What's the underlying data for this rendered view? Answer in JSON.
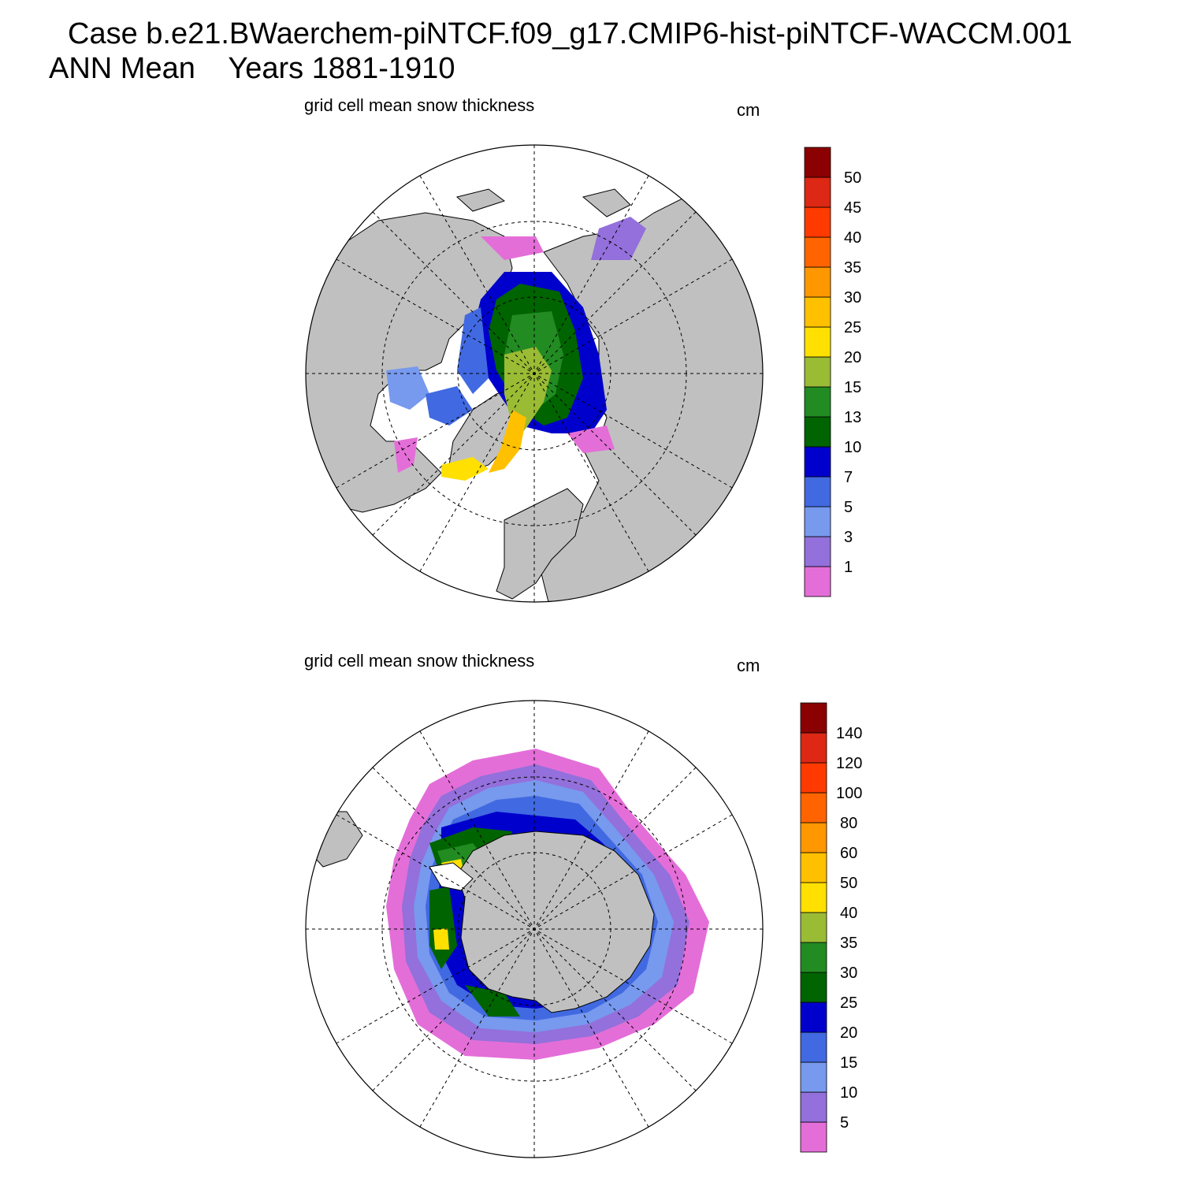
{
  "header": {
    "title_line1": "Case b.e21.BWaerchem-piNTCF.f09_g17.CMIP6-hist-piNTCF-WACCM.001",
    "title_line2": "ANN Mean    Years 1881-1910"
  },
  "panels": [
    {
      "id": "north",
      "title": "grid cell mean snow thickness",
      "units": "cm",
      "hemisphere": "Northern",
      "colorbar": {
        "labels": [
          "1",
          "3",
          "5",
          "7",
          "10",
          "13",
          "15",
          "20",
          "25",
          "30",
          "35",
          "40",
          "45",
          "50"
        ],
        "colors": [
          "#e46ed8",
          "#9370db",
          "#7799ee",
          "#4169e1",
          "#0000cd",
          "#006400",
          "#228b22",
          "#9abb34",
          "#ffe000",
          "#ffc000",
          "#ff9700",
          "#ff6400",
          "#ff3a00",
          "#dc2814",
          "#8b0000"
        ]
      }
    },
    {
      "id": "south",
      "title": "grid cell mean snow thickness",
      "units": "cm",
      "hemisphere": "Southern",
      "colorbar": {
        "labels": [
          "5",
          "10",
          "15",
          "20",
          "25",
          "30",
          "35",
          "40",
          "50",
          "60",
          "80",
          "100",
          "120",
          "140"
        ],
        "colors": [
          "#e46ed8",
          "#9370db",
          "#7799ee",
          "#4169e1",
          "#0000cd",
          "#006400",
          "#228b22",
          "#9abb34",
          "#ffe000",
          "#ffc000",
          "#ff9700",
          "#ff6400",
          "#ff3a00",
          "#dc2814",
          "#8b0000"
        ]
      }
    }
  ],
  "map_colors": {
    "land": "#c0c0c0",
    "ocean": "#ffffff",
    "grid": "#000000"
  }
}
